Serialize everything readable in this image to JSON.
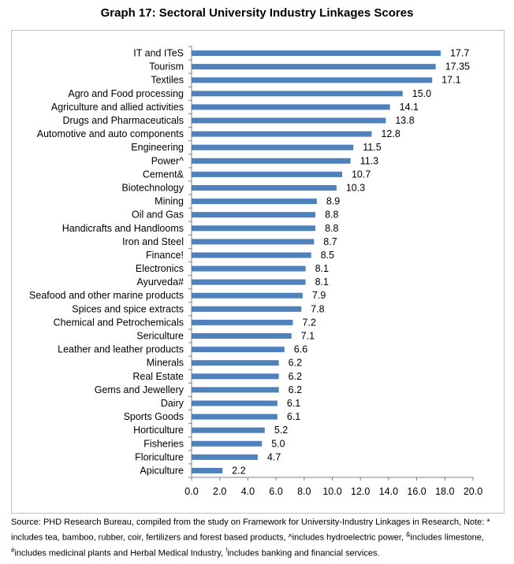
{
  "chart_data": {
    "type": "bar",
    "orientation": "horizontal",
    "title": "Graph 17: Sectoral University Industry Linkages Scores",
    "categories": [
      "IT and ITeS",
      "Tourism",
      "Textiles",
      "Agro and  Food processing",
      "Agriculture and allied activities",
      "Drugs and Pharmaceuticals",
      "Automotive and auto components",
      "Engineering",
      "Power^",
      "Cement&",
      "Biotechnology",
      "Mining",
      "Oil and Gas",
      "Handicrafts and Handlooms",
      "Iron and Steel",
      "Finance!",
      "Electronics",
      "Ayurveda#",
      "Seafood and other marine products",
      "Spices and spice extracts",
      "Chemical and Petrochemicals",
      "Sericulture",
      "Leather and leather products",
      "Minerals",
      "Real Estate",
      "Gems and Jewellery",
      "Dairy",
      "Sports Goods",
      "Horticulture",
      "Fisheries",
      "Floriculture",
      "Apiculture"
    ],
    "values": [
      17.7,
      17.35,
      17.1,
      15.0,
      14.1,
      13.8,
      12.8,
      11.5,
      11.3,
      10.7,
      10.3,
      8.9,
      8.8,
      8.8,
      8.7,
      8.5,
      8.1,
      8.1,
      7.9,
      7.8,
      7.2,
      7.1,
      6.6,
      6.2,
      6.2,
      6.2,
      6.1,
      6.1,
      5.2,
      5.0,
      4.7,
      2.2
    ],
    "value_labels": [
      "17.7",
      "17.35",
      "17.1",
      "15.0",
      "14.1",
      "13.8",
      "12.8",
      "11.5",
      "11.3",
      "10.7",
      "10.3",
      "8.9",
      "8.8",
      "8.8",
      "8.7",
      "8.5",
      "8.1",
      "8.1",
      "7.9",
      "7.8",
      "7.2",
      "7.1",
      "6.6",
      "6.2",
      "6.2",
      "6.2",
      "6.1",
      "6.1",
      "5.2",
      "5.0",
      "4.7",
      "2.2"
    ],
    "xlim": [
      0,
      20
    ],
    "x_ticks": [
      "0.0",
      "2.0",
      "4.0",
      "6.0",
      "8.0",
      "10.0",
      "12.0",
      "14.0",
      "16.0",
      "18.0",
      "20.0"
    ],
    "grid": false,
    "legend": "none",
    "bar_color": "#4f81bd"
  },
  "source": {
    "text_1": "Source: PHD Research Bureau, compiled from the study on Framework for University-Industry Linkages in Research, Note: * includes tea, bamboo, rubber, coir, fertilizers and forest based products, ^includes hydroelectric power, ",
    "sup_amp": "&",
    "text_2": "includes limestone, ",
    "sup_hash": "#",
    "text_3": "includes medicinal plants and Herbal Medical Industry, ",
    "sup_excl": "!",
    "text_4": "includes banking and financial services."
  }
}
